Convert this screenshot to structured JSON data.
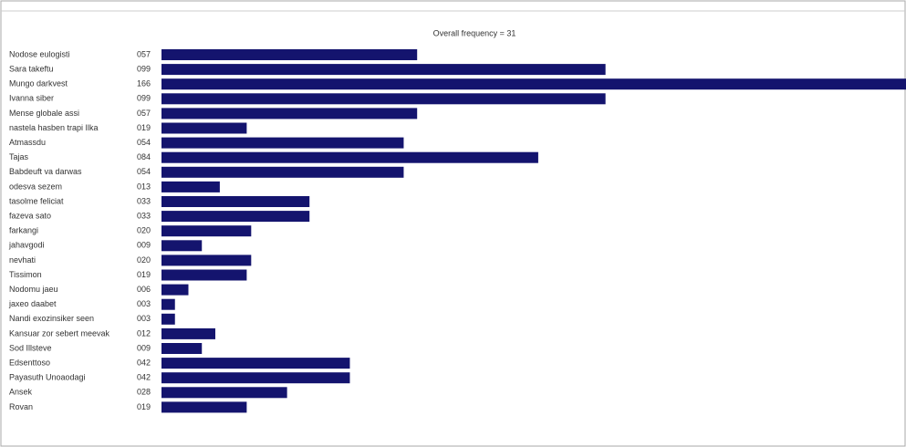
{
  "chart_data": {
    "type": "bar",
    "orientation": "horizontal",
    "title": "Overall frequency = 31",
    "categories": [
      "Nodose eulogisti",
      "Sara takeftu",
      "Mungo darkvest",
      "Ivanna siber",
      "Mense globale assi",
      "nastela hasben trapi Ilka",
      "Atmassdu",
      "Tajas",
      "Babdeuft va darwas",
      "odesva sezem",
      "tasolme feliciat",
      "fazeva sato",
      "farkangi",
      "jahavgodi",
      "nevhati",
      "Tissimon",
      "Nodomu jaeu",
      "jaxeo daabet",
      "Nandi exozinsiker seen",
      "Kansuar zor sebert meevak",
      "Sod Illsteve",
      "Edsenttoso",
      "Payasuth Unoaodagi",
      "Ansek",
      "Rovan"
    ],
    "values": [
      57,
      99,
      166,
      99,
      57,
      19,
      54,
      84,
      54,
      13,
      33,
      33,
      20,
      9,
      20,
      19,
      6,
      3,
      3,
      12,
      9,
      42,
      42,
      28,
      19
    ],
    "value_labels": [
      "057",
      "099",
      "166",
      "099",
      "057",
      "019",
      "054",
      "084",
      "054",
      "013",
      "033",
      "033",
      "020",
      "009",
      "020",
      "019",
      "006",
      "003",
      "003",
      "012",
      "009",
      "042",
      "042",
      "028",
      "019"
    ],
    "color": "#14146e",
    "xlim": [
      0,
      166
    ]
  }
}
